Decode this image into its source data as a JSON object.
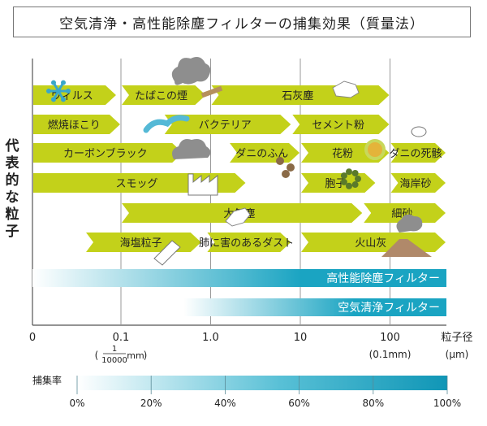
{
  "chart_data": {
    "type": "range-bar",
    "title": "空気清浄・高性能除塵フィルターの捕集効果（質量法）",
    "ylabel": "代表的な粒子",
    "xlabel": "粒子径",
    "xunit": "(μm)",
    "xscale": "log",
    "ticks": [
      {
        "value": 0,
        "label": "0",
        "sub": ""
      },
      {
        "value": 0.1,
        "label": "0.1",
        "sub": "mm"
      },
      {
        "value": 1.0,
        "label": "1.0",
        "sub": ""
      },
      {
        "value": 10,
        "label": "10",
        "sub": ""
      },
      {
        "value": 100,
        "label": "100",
        "sub": "(0.1mm)"
      }
    ],
    "tick_fraction": {
      "num": "1",
      "den": "10000"
    },
    "particles": [
      {
        "row": 0,
        "label": "ウィルス",
        "from": 0,
        "to": 0.09
      },
      {
        "row": 0,
        "label": "たばこの煙",
        "from": 0.1,
        "to": 0.9
      },
      {
        "row": 0,
        "label": "石灰塵",
        "from": 1.0,
        "to": 100
      },
      {
        "row": 1,
        "label": "燃焼ほこり",
        "from": 0,
        "to": 0.1
      },
      {
        "row": 1,
        "label": "バクテリア",
        "from": 0.3,
        "to": 8
      },
      {
        "row": 1,
        "label": "セメント粉",
        "from": 8,
        "to": 100
      },
      {
        "row": 2,
        "label": "カーボンブラック",
        "from": 0,
        "to": 0.5
      },
      {
        "row": 2,
        "label": "ダニのふん",
        "from": 1.6,
        "to": 10
      },
      {
        "row": 2,
        "label": "花粉",
        "from": 10,
        "to": 100
      },
      {
        "row": 2,
        "label": "ダニの死骸",
        "from": 100,
        "to": 1000
      },
      {
        "row": 3,
        "label": "スモッグ",
        "from": 0,
        "to": 2.5
      },
      {
        "row": 3,
        "label": "胞子",
        "from": 10,
        "to": 70
      },
      {
        "row": 3,
        "label": "海岸砂",
        "from": 100,
        "to": 1000
      },
      {
        "row": 4,
        "label": "大気塵",
        "from": 0.1,
        "to": 50
      },
      {
        "row": 4,
        "label": "細砂",
        "from": 50,
        "to": 1000
      },
      {
        "row": 5,
        "label": "海塩粒子",
        "from": 0.04,
        "to": 0.8
      },
      {
        "row": 5,
        "label": "肺に害のあるダスト",
        "from": 0.9,
        "to": 8
      },
      {
        "row": 5,
        "label": "火山灰",
        "from": 10,
        "to": 1000
      }
    ],
    "filters": [
      {
        "label": "高性能除塵フィルター",
        "from": 0,
        "to": 1000
      },
      {
        "label": "空気清浄フィルター",
        "from": 0.5,
        "to": 1000
      }
    ],
    "capture_rate": {
      "label": "捕集率",
      "ticks": [
        "0%",
        "20%",
        "40%",
        "60%",
        "80%",
        "100%"
      ]
    },
    "colors": {
      "arrow": "#c3d11a",
      "filter_dark": "#1aa4c2",
      "filter_light": "#ffffff",
      "grid": "#999999"
    }
  }
}
